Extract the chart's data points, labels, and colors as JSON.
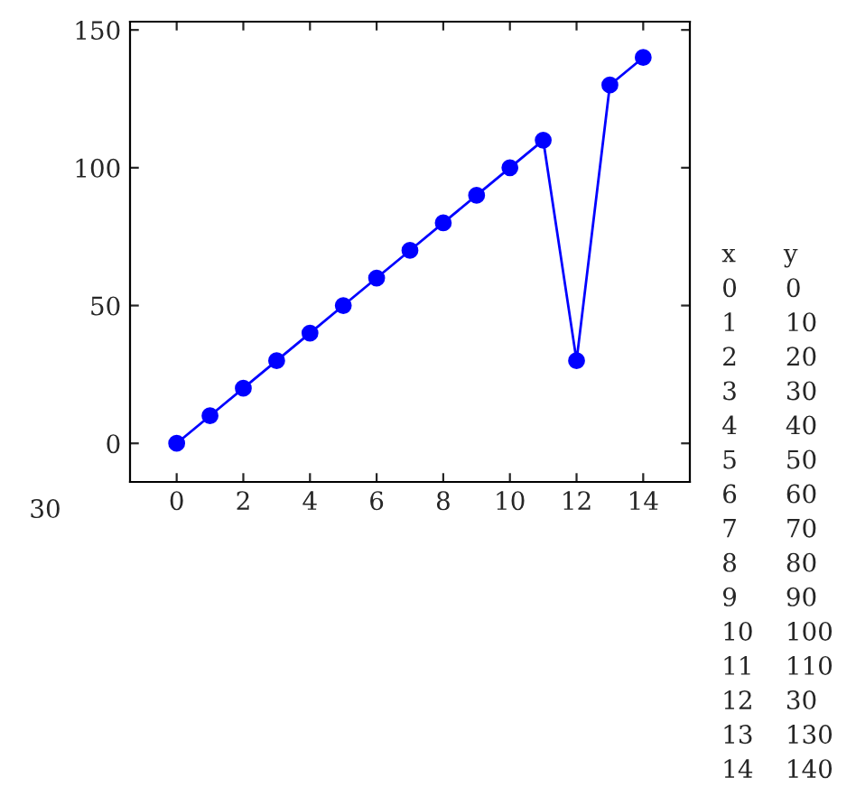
{
  "chart_data": [
    {
      "type": "line",
      "x": [
        0,
        1,
        2,
        3,
        4,
        5,
        6,
        7,
        8,
        9,
        10,
        11,
        12,
        13,
        14
      ],
      "series": [
        {
          "color": "#0000ff",
          "values": [
            0,
            10,
            20,
            30,
            40,
            50,
            60,
            70,
            80,
            90,
            100,
            110,
            30,
            130,
            140
          ]
        }
      ],
      "xlim": [
        -1.4,
        15.4
      ],
      "ylim": [
        -14,
        153
      ],
      "xticks": [
        0,
        2,
        4,
        6,
        8,
        10,
        12,
        14
      ],
      "yticks": [
        0,
        50,
        100,
        150
      ],
      "marker": "circle",
      "line_style": "solid",
      "annotations": [
        "30"
      ]
    },
    {
      "type": "other",
      "annotations": [
        "x      y",
        "0      0",
        "1      10",
        "2      20",
        "3      30",
        "4      40",
        "5      50",
        "6      60",
        "7      70",
        "8      80",
        "9      90",
        "10    100",
        "11    110",
        "12    30",
        "13    130",
        "14    140"
      ]
    }
  ]
}
